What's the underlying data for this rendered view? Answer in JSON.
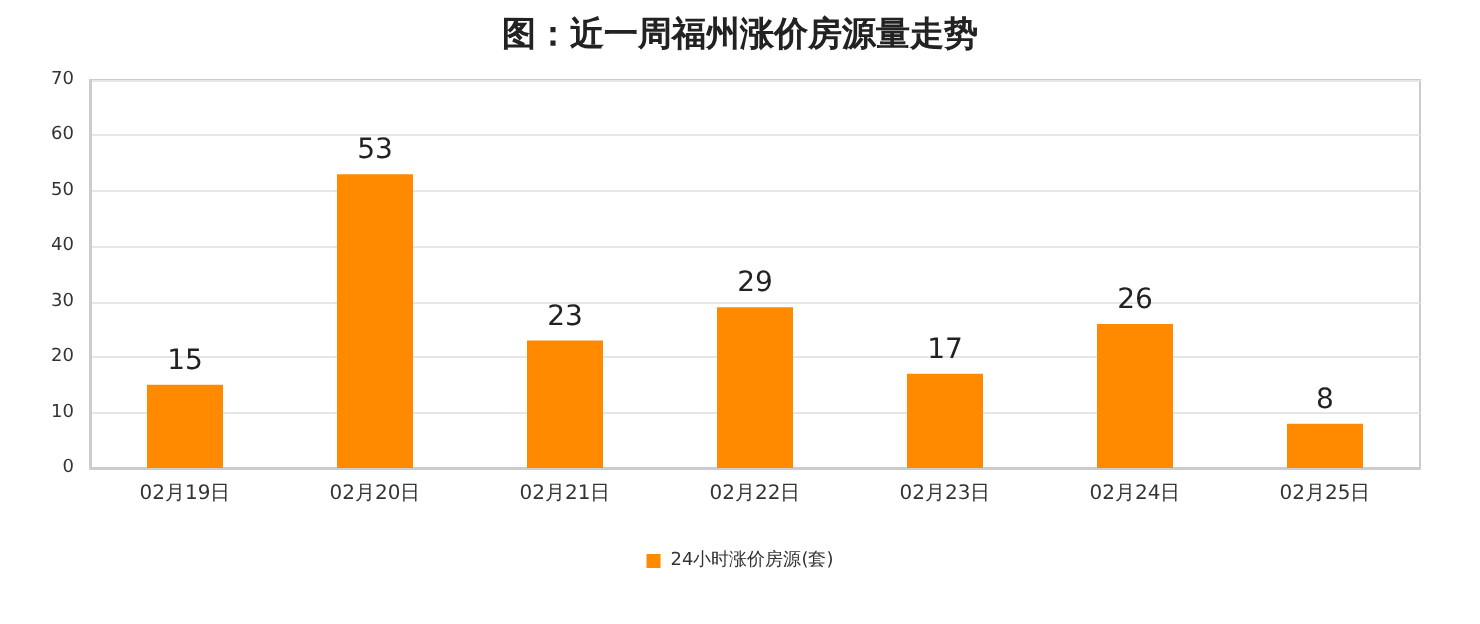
{
  "chart_data": {
    "type": "bar",
    "title": "图：近一周福州涨价房源量走势",
    "categories": [
      "02月19日",
      "02月20日",
      "02月21日",
      "02月22日",
      "02月23日",
      "02月24日",
      "02月25日"
    ],
    "series": [
      {
        "name": "24小时涨价房源(套)",
        "color": "#ff8a00",
        "values": [
          15,
          53,
          23,
          29,
          17,
          26,
          8
        ]
      }
    ],
    "ylim": [
      0,
      70
    ],
    "yticks": [
      0,
      10,
      20,
      30,
      40,
      50,
      60,
      70
    ],
    "grid": "y",
    "legend": "bottom",
    "data_labels": true
  }
}
